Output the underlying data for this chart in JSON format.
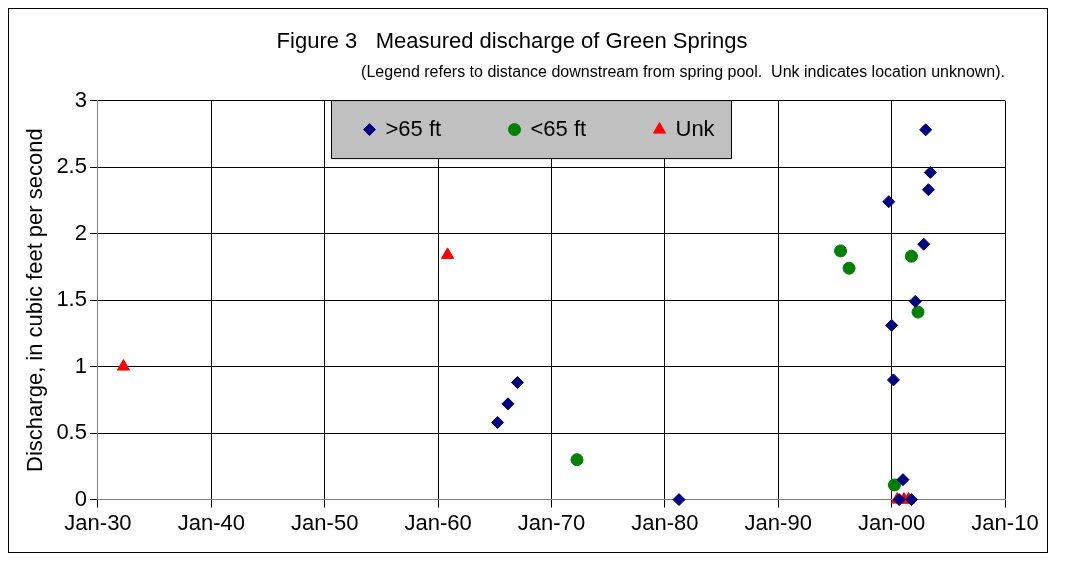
{
  "chart_data": {
    "type": "scatter",
    "title": "Figure 3   Measured discharge of Green Springs",
    "subtitle": "(Legend refers to distance downstream from spring pool.  Unk indicates location unknown).",
    "ylabel": "Discharge, in cubic feet per second",
    "xlim": [
      "1930-01",
      "2010-01"
    ],
    "xticks": [
      {
        "value": "1930-01",
        "label": "Jan-30"
      },
      {
        "value": "1940-01",
        "label": "Jan-40"
      },
      {
        "value": "1950-01",
        "label": "Jan-50"
      },
      {
        "value": "1960-01",
        "label": "Jan-60"
      },
      {
        "value": "1970-01",
        "label": "Jan-70"
      },
      {
        "value": "1980-01",
        "label": "Jan-80"
      },
      {
        "value": "1990-01",
        "label": "Jan-90"
      },
      {
        "value": "2000-01",
        "label": "Jan-00"
      },
      {
        "value": "2010-01",
        "label": "Jan-10"
      }
    ],
    "ylim": [
      0,
      3
    ],
    "yticks": [
      0,
      0.5,
      1,
      1.5,
      2,
      2.5,
      3
    ],
    "grid": true,
    "legend": "top",
    "series": [
      {
        "name": ">65 ft",
        "color": "#000080",
        "marker": "diamond",
        "x": [
          "1965-04",
          "1966-03",
          "1967-01",
          "1981-04",
          "1999-10",
          "2000-01",
          "2000-03",
          "2001-01",
          "2000-09",
          "2001-10",
          "2002-02",
          "2002-11",
          "2003-01",
          "2003-06",
          "2003-04"
        ],
        "values": [
          0.58,
          0.72,
          0.88,
          0,
          2.24,
          1.31,
          0.9,
          0.15,
          0,
          0,
          1.49,
          1.92,
          2.78,
          2.46,
          2.33
        ]
      },
      {
        "name": "<65 ft",
        "color": "#008000",
        "marker": "circle",
        "x": [
          "1995-07",
          "1996-04",
          "2001-10",
          "2002-05",
          "1972-04",
          "2000-04"
        ],
        "values": [
          1.87,
          1.74,
          1.83,
          1.41,
          0.3,
          0.11
        ]
      },
      {
        "name": "Unk",
        "color": "#ff0000",
        "marker": "triangle",
        "x": [
          "1932-04",
          "1960-11",
          "2000-07",
          "2001-02",
          "2001-07"
        ],
        "values": [
          1,
          1.84,
          0,
          0,
          0
        ]
      }
    ]
  }
}
